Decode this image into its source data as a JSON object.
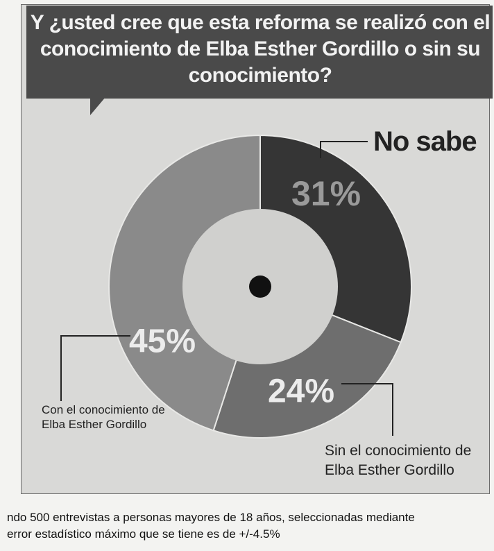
{
  "title": "Y ¿usted cree que esta reforma se realizó con el conocimiento de Elba Esther Gordillo o sin su conocimiento?",
  "footer": {
    "line1": "ndo 500 entrevistas a personas mayores de 18 años, seleccionadas mediante",
    "line2": "error estadístico máximo que se tiene es de +/-4.5%"
  },
  "colors": {
    "no_sabe": "#353535",
    "sin": "#6e6e6e",
    "con": "#8a8a8a",
    "hole": "#d0d0ce",
    "banner": "#4a4a4a"
  },
  "chart_data": {
    "type": "pie",
    "title": "Y ¿usted cree que esta reforma se realizó con el conocimiento de Elba Esther Gordillo o sin su conocimiento?",
    "categories": [
      "No sabe",
      "Sin el conocimiento de Elba Esther Gordillo",
      "Con el conocimiento de Elba Esther Gordillo"
    ],
    "values": [
      31,
      24,
      45
    ],
    "value_labels": [
      "31%",
      "24%",
      "45%"
    ],
    "unit": "%",
    "donut": true
  }
}
